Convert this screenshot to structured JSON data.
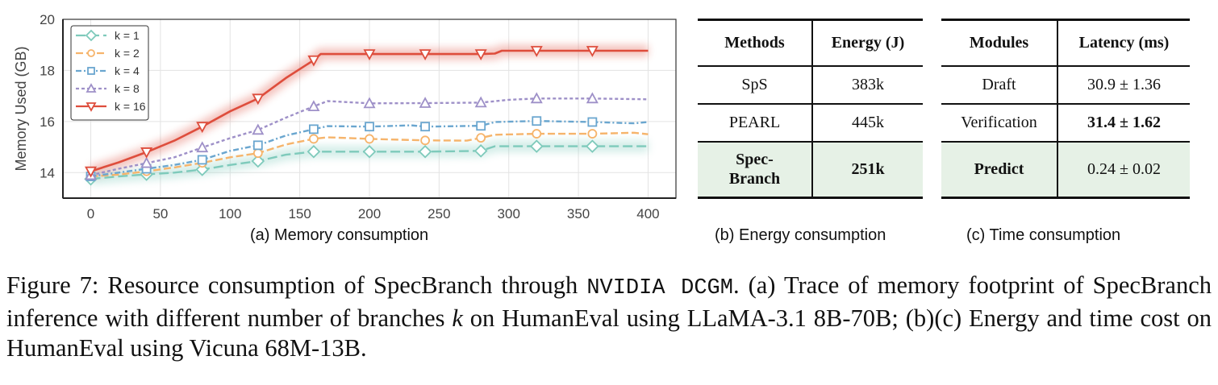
{
  "chart_data": {
    "type": "line",
    "title": "",
    "xlabel": "",
    "ylabel": "Memory Used (GB)",
    "xlim": [
      -20,
      420
    ],
    "ylim": [
      13,
      20
    ],
    "xticks": [
      0,
      50,
      100,
      150,
      200,
      250,
      300,
      350,
      400
    ],
    "yticks": [
      14,
      16,
      18,
      20
    ],
    "grid": true,
    "legend_position": "top-left",
    "marker_x": [
      0,
      40,
      80,
      120,
      160,
      200,
      240,
      280,
      320,
      360
    ],
    "series": [
      {
        "name": "k = 1",
        "color": "#7ecabb",
        "marker": "diamond",
        "dash": "long-dash",
        "x": [
          0,
          20,
          40,
          60,
          80,
          100,
          120,
          140,
          160,
          200,
          240,
          280,
          290,
          320,
          360,
          400
        ],
        "y": [
          13.75,
          13.85,
          13.93,
          14.0,
          14.12,
          14.3,
          14.45,
          14.7,
          14.82,
          14.82,
          14.82,
          14.85,
          15.03,
          15.03,
          15.03,
          15.03
        ],
        "markers_y": [
          13.75,
          13.93,
          14.12,
          14.45,
          14.82,
          14.82,
          14.82,
          14.85,
          15.03,
          15.03
        ]
      },
      {
        "name": "k = 2",
        "color": "#f6b46b",
        "marker": "circle",
        "dash": "dash",
        "x": [
          0,
          20,
          40,
          60,
          80,
          100,
          120,
          140,
          160,
          170,
          200,
          240,
          270,
          280,
          290,
          320,
          360,
          390,
          400
        ],
        "y": [
          13.85,
          13.92,
          14.05,
          14.2,
          14.38,
          14.6,
          14.76,
          15.1,
          15.32,
          15.38,
          15.32,
          15.26,
          15.25,
          15.36,
          15.48,
          15.52,
          15.52,
          15.56,
          15.5
        ],
        "markers_y": [
          13.85,
          14.05,
          14.38,
          14.76,
          15.32,
          15.32,
          15.26,
          15.36,
          15.52,
          15.52
        ]
      },
      {
        "name": "k = 4",
        "color": "#6aa6cf",
        "marker": "square",
        "dash": "dash-dot",
        "x": [
          0,
          20,
          40,
          60,
          80,
          100,
          120,
          140,
          160,
          170,
          200,
          230,
          240,
          280,
          290,
          320,
          360,
          390,
          400
        ],
        "y": [
          13.85,
          14.0,
          14.15,
          14.3,
          14.5,
          14.85,
          15.07,
          15.45,
          15.7,
          15.82,
          15.8,
          15.85,
          15.8,
          15.83,
          15.98,
          16.02,
          15.98,
          15.93,
          15.98
        ],
        "markers_y": [
          13.85,
          14.15,
          14.5,
          15.07,
          15.7,
          15.8,
          15.8,
          15.83,
          16.02,
          15.98
        ]
      },
      {
        "name": "k = 8",
        "color": "#9e90c8",
        "marker": "triangle-up",
        "dash": "dot-dash",
        "x": [
          0,
          20,
          40,
          60,
          80,
          100,
          120,
          140,
          160,
          170,
          200,
          240,
          280,
          300,
          320,
          360,
          400
        ],
        "y": [
          13.9,
          14.15,
          14.37,
          14.6,
          14.98,
          15.35,
          15.67,
          16.15,
          16.59,
          16.8,
          16.71,
          16.72,
          16.74,
          16.85,
          16.9,
          16.9,
          16.87
        ],
        "markers_y": [
          13.9,
          14.37,
          14.98,
          15.67,
          16.59,
          16.71,
          16.72,
          16.74,
          16.9,
          16.9
        ]
      },
      {
        "name": "k = 16",
        "color": "#de4d3c",
        "marker": "triangle-down",
        "dash": "solid",
        "x": [
          0,
          20,
          40,
          60,
          80,
          100,
          120,
          140,
          160,
          165,
          200,
          240,
          280,
          290,
          295,
          320,
          360,
          400
        ],
        "y": [
          14.05,
          14.4,
          14.8,
          15.25,
          15.8,
          16.4,
          16.9,
          17.7,
          18.4,
          18.64,
          18.64,
          18.64,
          18.64,
          18.66,
          18.77,
          18.77,
          18.77,
          18.77
        ],
        "markers_y": [
          14.05,
          14.8,
          15.8,
          16.9,
          18.4,
          18.64,
          18.64,
          18.64,
          18.77,
          18.77
        ]
      }
    ]
  },
  "subcaptions": {
    "a": "(a) Memory consumption",
    "b": "(b) Energy consumption",
    "c": "(c) Time consumption"
  },
  "energy_table": {
    "headers": [
      "Methods",
      "Energy (J)"
    ],
    "rows": [
      {
        "method": "SpS",
        "value": "383k"
      },
      {
        "method": "PEARL",
        "value": "445k"
      },
      {
        "method": "Spec-\nBranch",
        "method_line1": "Spec-",
        "method_line2": "Branch",
        "value": "251k"
      }
    ]
  },
  "time_table": {
    "headers": [
      "Modules",
      "Latency (ms)"
    ],
    "rows": [
      {
        "module": "Draft",
        "value": "30.9 ± 1.36"
      },
      {
        "module": "Verification",
        "value": "31.4 ± 1.62"
      },
      {
        "module": "Predict",
        "value": "0.24 ± 0.02"
      }
    ]
  },
  "caption": {
    "part1": "Figure 7:  Resource consumption of SpecBranch through ",
    "mono": "NVIDIA DCGM",
    "part2": ". (a) Trace of memory footprint of SpecBranch inference with different number of branches ",
    "italic": "k",
    "part3": " on HumanEval using LLaMA-3.1 8B-70B; (b)(c) Energy and time cost on HumanEval using Vicuna 68M-13B."
  }
}
